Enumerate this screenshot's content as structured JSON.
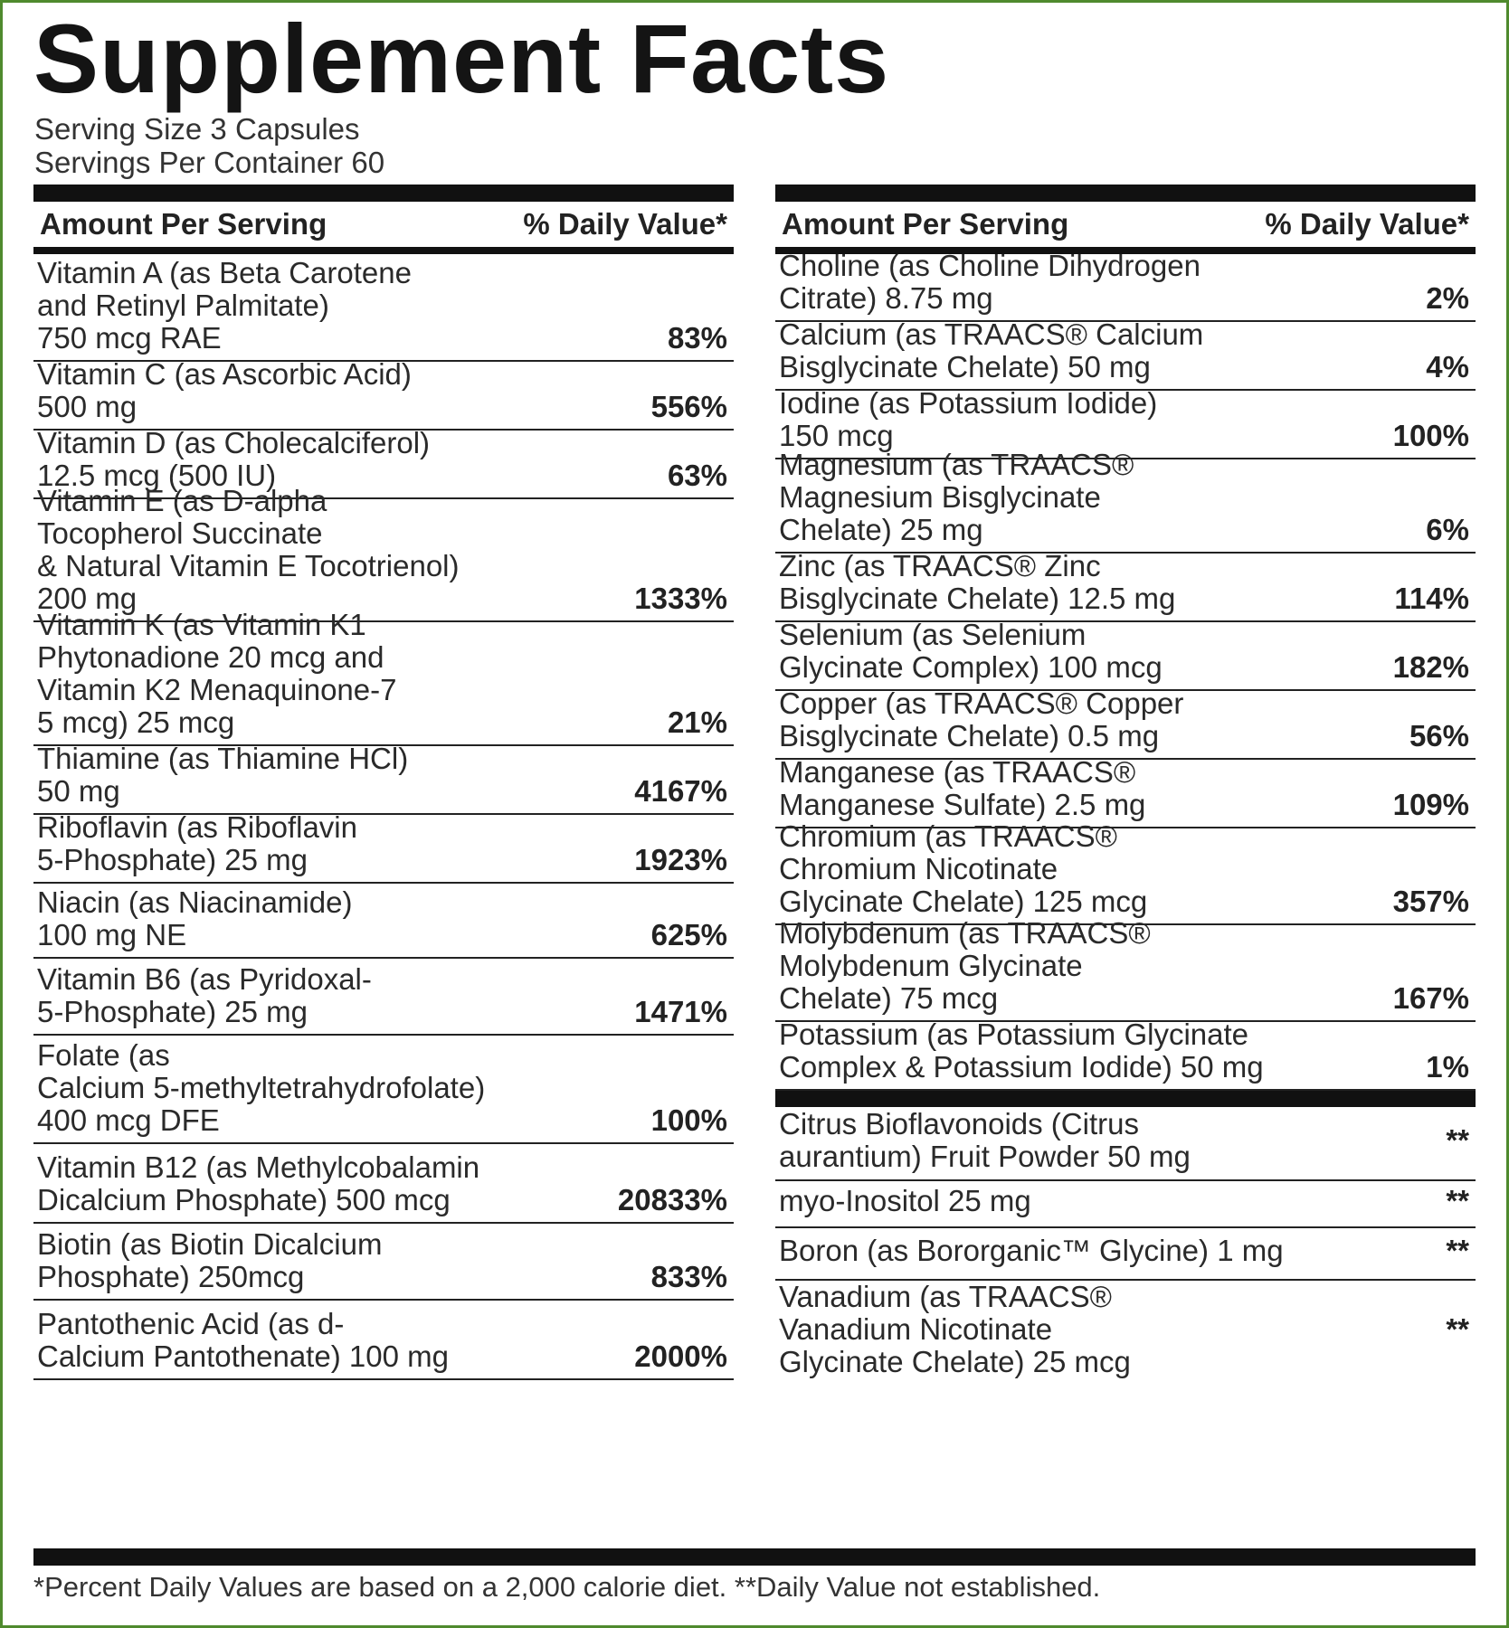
{
  "title": "Supplement Facts",
  "serving_size": "Serving Size 3 Capsules",
  "servings_per_container": "Servings Per Container 60",
  "header": {
    "amount": "Amount Per Serving",
    "dv": "% Daily Value*"
  },
  "left": [
    {
      "name": "Vitamin A (as Beta Carotene\nand Retinyl Palmitate)\n750 mcg RAE",
      "dv": "83%"
    },
    {
      "name": "Vitamin C (as Ascorbic Acid)\n500 mg",
      "dv": "556%"
    },
    {
      "name": "Vitamin D (as Cholecalciferol)\n12.5 mcg (500 IU)",
      "dv": "63%"
    },
    {
      "name": "Vitamin E (as D-alpha\nTocopherol Succinate\n& Natural Vitamin E Tocotrienol)\n200 mg",
      "dv": "1333%"
    },
    {
      "name": "Vitamin K (as Vitamin K1\nPhytonadione 20 mcg and\nVitamin K2 Menaquinone-7\n5 mcg)  25 mcg",
      "dv": "21%"
    },
    {
      "name": "Thiamine (as Thiamine HCl)\n50 mg",
      "dv": "4167%"
    },
    {
      "name": "Riboflavin (as Riboflavin\n5-Phosphate)  25 mg",
      "dv": "1923%"
    },
    {
      "name": "Niacin (as Niacinamide)\n100 mg NE",
      "dv": "625%"
    },
    {
      "name": "Vitamin B6 (as Pyridoxal-\n5-Phosphate) 25 mg",
      "dv": "1471%"
    },
    {
      "name": "Folate (as\nCalcium 5-methyltetrahydrofolate)\n400 mcg DFE",
      "dv": "100%"
    },
    {
      "name": "Vitamin B12 (as Methylcobalamin\nDicalcium Phosphate)  500 mcg",
      "dv": "20833%"
    },
    {
      "name": "Biotin  (as Biotin Dicalcium\nPhosphate)  250mcg",
      "dv": "833%"
    },
    {
      "name": "Pantothenic Acid (as d-\nCalcium Pantothenate)  100 mg",
      "dv": "2000%"
    }
  ],
  "right": [
    {
      "name": "Choline (as Choline Dihydrogen\nCitrate)  8.75 mg",
      "dv": "2%"
    },
    {
      "name": "Calcium (as TRAACS® Calcium\nBisglycinate Chelate)  50 mg",
      "dv": "4%"
    },
    {
      "name": "Iodine (as Potassium Iodide)\n150 mcg",
      "dv": "100%"
    },
    {
      "name": "Magnesium (as TRAACS®\nMagnesium Bisglycinate\nChelate)  25 mg",
      "dv": "6%"
    },
    {
      "name": "Zinc (as TRAACS® Zinc\nBisglycinate Chelate)  12.5 mg",
      "dv": "114%"
    },
    {
      "name": "Selenium (as Selenium\nGlycinate Complex)  100 mcg",
      "dv": "182%"
    },
    {
      "name": "Copper (as TRAACS® Copper\nBisglycinate Chelate)  0.5 mg",
      "dv": "56%"
    },
    {
      "name": "Manganese (as TRAACS®\nManganese Sulfate)  2.5 mg",
      "dv": "109%"
    },
    {
      "name": "Chromium (as TRAACS®\nChromium Nicotinate\nGlycinate Chelate)  125 mcg",
      "dv": "357%"
    },
    {
      "name": "Molybdenum (as TRAACS®\nMolybdenum Glycinate\nChelate)  75 mcg",
      "dv": "167%"
    },
    {
      "name": "Potassium (as Potassium Glycinate\nComplex & Potassium Iodide)  50 mg",
      "dv": "1%"
    }
  ],
  "right_other": [
    {
      "name": "Citrus Bioflavonoids (Citrus\naurantium) Fruit Powder  50 mg",
      "dv": "**"
    },
    {
      "name": "myo-Inositol  25 mg",
      "dv": "**"
    },
    {
      "name": "Boron (as Bororganic™ Glycine) 1 mg",
      "dv": "**"
    },
    {
      "name": "Vanadium (as TRAACS®\nVanadium Nicotinate\nGlycinate Chelate)  25 mcg",
      "dv": "**"
    }
  ],
  "footnote": "*Percent Daily Values are based on a 2,000 calorie diet. **Daily Value not established."
}
